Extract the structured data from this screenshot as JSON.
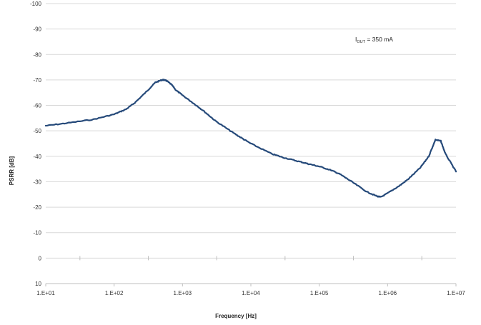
{
  "chart_data": {
    "type": "line",
    "xlabel": "Frequency [Hz]",
    "ylabel": "PSRR [dB]",
    "x_scale": "log",
    "xlim": [
      10,
      10000000
    ],
    "ylim": [
      10,
      -100
    ],
    "y_axis_inverted": true,
    "grid": "horizontal",
    "x_tick_labels": [
      "1.E+01",
      "1.E+02",
      "1.E+03",
      "1.E+04",
      "1.E+05",
      "1.E+06",
      "1.E+07"
    ],
    "x_tick_values": [
      10,
      100,
      1000,
      10000,
      100000,
      1000000,
      10000000
    ],
    "y_tick_labels": [
      "-100",
      "-90",
      "-80",
      "-70",
      "-60",
      "-50",
      "-40",
      "-30",
      "-20",
      "-10",
      "0",
      "10"
    ],
    "y_tick_values": [
      -100,
      -90,
      -80,
      -70,
      -60,
      -50,
      -40,
      -30,
      -20,
      -10,
      0,
      10
    ],
    "annotation": {
      "prefix": "I",
      "subscript": "OUT",
      "suffix": " = 350 mA"
    },
    "series": [
      {
        "color": "#264a7a",
        "x": [
          10,
          20,
          50,
          100,
          150,
          200,
          300,
          400,
          500,
          550,
          600,
          700,
          800,
          1000,
          1500,
          2000,
          3000,
          5000,
          7000,
          10000,
          20000,
          30000,
          50000,
          70000,
          100000,
          150000,
          200000,
          300000,
          500000,
          700000,
          800000,
          1000000,
          1500000,
          2000000,
          3000000,
          4000000,
          5000000,
          6000000,
          7000000,
          10000000
        ],
        "y": [
          -52,
          -53,
          -54.5,
          -56.5,
          -58.5,
          -61,
          -65.5,
          -69,
          -70,
          -70,
          -69.5,
          -68,
          -66,
          -64,
          -60.5,
          -58,
          -54,
          -50,
          -47.5,
          -45,
          -41,
          -39.5,
          -38,
          -37,
          -36,
          -34.5,
          -33,
          -30,
          -26,
          -24.3,
          -24,
          -25.5,
          -28.5,
          -31,
          -35.5,
          -40,
          -46.5,
          -46,
          -41,
          -34
        ]
      }
    ]
  }
}
